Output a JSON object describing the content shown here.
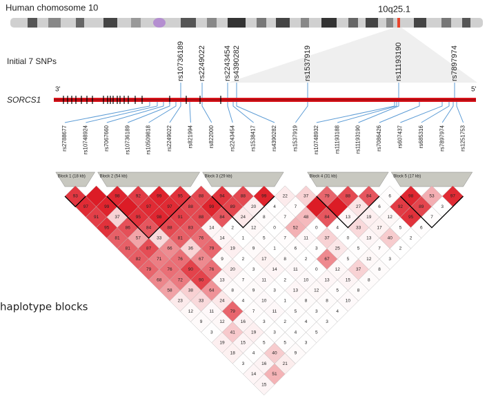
{
  "header": {
    "chromosome": "Human chomosome 10",
    "band": "10q25.1"
  },
  "initial_snps": {
    "label": "Initial 7 SNPs",
    "snps": [
      "rs10736189",
      "rs2249022",
      "rs2243454",
      "rs4390282",
      "rs1537919",
      "rs11193190",
      "rs7897974"
    ]
  },
  "gene": {
    "name": "SORCS1",
    "end_3": "3'",
    "end_5": "5'"
  },
  "snps": [
    "rs2788677",
    "rs10748924",
    "rs7067660",
    "rs10736189",
    "rs10509818",
    "rs2249022",
    "rs821994",
    "rs822000",
    "rs2243454",
    "rs1538417",
    "rs4390282",
    "rs1537919",
    "rs10748932",
    "rs11193188",
    "rs11193190",
    "rs7086426",
    "rs607437",
    "rs685316",
    "rs7897974",
    "rs1251753"
  ],
  "blocks": [
    "Block 1 (18 kb)",
    "Block 2 (54 kb)",
    "Block 3 (29 kb)",
    "Block 4 (31 kb)",
    "Block 5 (17 kb)"
  ],
  "ld": {
    "diagonals": [
      [
        93,
        null,
        98,
        92,
        99,
        95,
        88,
        94,
        88,
        99,
        22,
        37,
        79,
        88,
        84,
        6,
        98,
        53,
        97
      ],
      [
        97,
        99,
        null,
        97,
        97,
        88,
        99,
        89,
        20,
        4,
        7,
        null,
        null,
        27,
        6,
        92,
        89,
        3
      ],
      [
        91,
        37,
        95,
        98,
        91,
        88,
        84,
        24,
        8,
        7,
        48,
        84,
        13,
        19,
        12,
        95,
        7
      ],
      [
        95,
        86,
        84,
        88,
        83,
        14,
        2,
        12,
        0,
        52,
        0,
        4,
        33,
        17,
        5,
        6
      ],
      [
        81,
        57,
        33,
        81,
        76,
        14,
        1,
        5,
        7,
        11,
        37,
        0,
        13,
        40,
        2
      ],
      [
        81,
        87,
        66,
        36,
        79,
        19,
        9,
        1,
        6,
        3,
        25,
        5,
        7,
        2
      ],
      [
        82,
        71,
        76,
        67,
        9,
        2,
        17,
        8,
        2,
        67,
        5,
        12,
        3
      ],
      [
        79,
        76,
        90,
        76,
        20,
        3,
        14,
        11,
        0,
        12,
        37,
        8
      ],
      [
        68,
        72,
        90,
        13,
        7,
        11,
        2,
        10,
        13,
        15,
        8
      ],
      [
        58,
        38,
        64,
        8,
        9,
        3,
        13,
        12,
        5,
        8
      ],
      [
        23,
        33,
        24,
        4,
        10,
        1,
        8,
        8,
        10
      ],
      [
        12,
        11,
        79,
        7,
        11,
        5,
        3,
        4
      ],
      [
        9,
        12,
        16,
        3,
        2,
        4,
        3
      ],
      [
        3,
        41,
        19,
        3,
        4,
        5
      ],
      [
        19,
        15,
        5,
        5,
        3
      ],
      [
        18,
        4,
        40,
        9
      ],
      [
        3,
        16,
        21
      ],
      [
        14,
        51
      ],
      [
        15
      ]
    ]
  },
  "annotation": "haplotype blocks"
}
